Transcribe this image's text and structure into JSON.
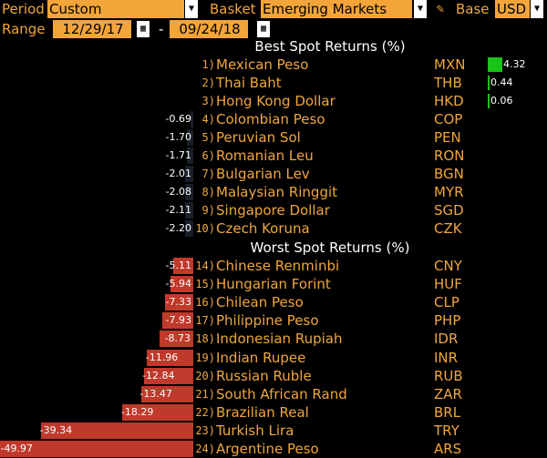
{
  "toolbar": {
    "period_label": "Period",
    "period_value": "Custom",
    "basket_label": "Basket",
    "basket_value": "Emerging Markets",
    "base_label": "Base",
    "base_value": "USD",
    "range_label": "Range",
    "range_start": "12/29/17",
    "range_separator": "-",
    "range_end": "09/24/18",
    "icons": [
      "dropdown-arrow-icon",
      "pencil-icon",
      "calendar-icon"
    ]
  },
  "sections": {
    "best_title": "Best Spot Returns (%)",
    "worst_title": "Worst Spot Returns (%)"
  },
  "colors": {
    "accent": "#f0a63c",
    "positive_bar": "#18c418",
    "negative_bar": "#c0392b",
    "negative_bar_light": "#1a1e2a"
  },
  "chart_data": {
    "type": "bar",
    "best": [
      {
        "rank": "1)",
        "name": "Mexican Peso",
        "code": "MXN",
        "value": 4.32
      },
      {
        "rank": "2)",
        "name": "Thai Baht",
        "code": "THB",
        "value": 0.44
      },
      {
        "rank": "3)",
        "name": "Hong Kong Dollar",
        "code": "HKD",
        "value": 0.06
      },
      {
        "rank": "4)",
        "name": "Colombian Peso",
        "code": "COP",
        "value": -0.69
      },
      {
        "rank": "5)",
        "name": "Peruvian Sol",
        "code": "PEN",
        "value": -1.7
      },
      {
        "rank": "6)",
        "name": "Romanian Leu",
        "code": "RON",
        "value": -1.71
      },
      {
        "rank": "7)",
        "name": "Bulgarian Lev",
        "code": "BGN",
        "value": -2.01
      },
      {
        "rank": "8)",
        "name": "Malaysian Ringgit",
        "code": "MYR",
        "value": -2.08
      },
      {
        "rank": "9)",
        "name": "Singapore Dollar",
        "code": "SGD",
        "value": -2.11
      },
      {
        "rank": "10)",
        "name": "Czech Koruna",
        "code": "CZK",
        "value": -2.2
      }
    ],
    "worst": [
      {
        "rank": "14)",
        "name": "Chinese Renminbi",
        "code": "CNY",
        "value": -5.11
      },
      {
        "rank": "15)",
        "name": "Hungarian Forint",
        "code": "HUF",
        "value": -5.94
      },
      {
        "rank": "16)",
        "name": "Chilean Peso",
        "code": "CLP",
        "value": -7.33
      },
      {
        "rank": "17)",
        "name": "Philippine Peso",
        "code": "PHP",
        "value": -7.93
      },
      {
        "rank": "18)",
        "name": "Indonesian Rupiah",
        "code": "IDR",
        "value": -8.73
      },
      {
        "rank": "19)",
        "name": "Indian Rupee",
        "code": "INR",
        "value": -11.96
      },
      {
        "rank": "20)",
        "name": "Russian Ruble",
        "code": "RUB",
        "value": -12.84
      },
      {
        "rank": "21)",
        "name": "South African Rand",
        "code": "ZAR",
        "value": -13.47
      },
      {
        "rank": "22)",
        "name": "Brazilian Real",
        "code": "BRL",
        "value": -18.29
      },
      {
        "rank": "23)",
        "name": "Turkish Lira",
        "code": "TRY",
        "value": -39.34
      },
      {
        "rank": "24)",
        "name": "Argentine Peso",
        "code": "ARS",
        "value": -49.97
      }
    ],
    "value_labels_best": [
      "4.32",
      "0.44",
      "0.06",
      "-0.69",
      "-1.70",
      "-1.71",
      "-2.01",
      "-2.08",
      "-2.11",
      "-2.20"
    ],
    "value_labels_worst": [
      "-5.11",
      "-5.94",
      "-7.33",
      "-7.93",
      "-8.73",
      "-11.96",
      "-12.84",
      "-13.47",
      "-18.29",
      "-39.34",
      "-49.97"
    ]
  }
}
